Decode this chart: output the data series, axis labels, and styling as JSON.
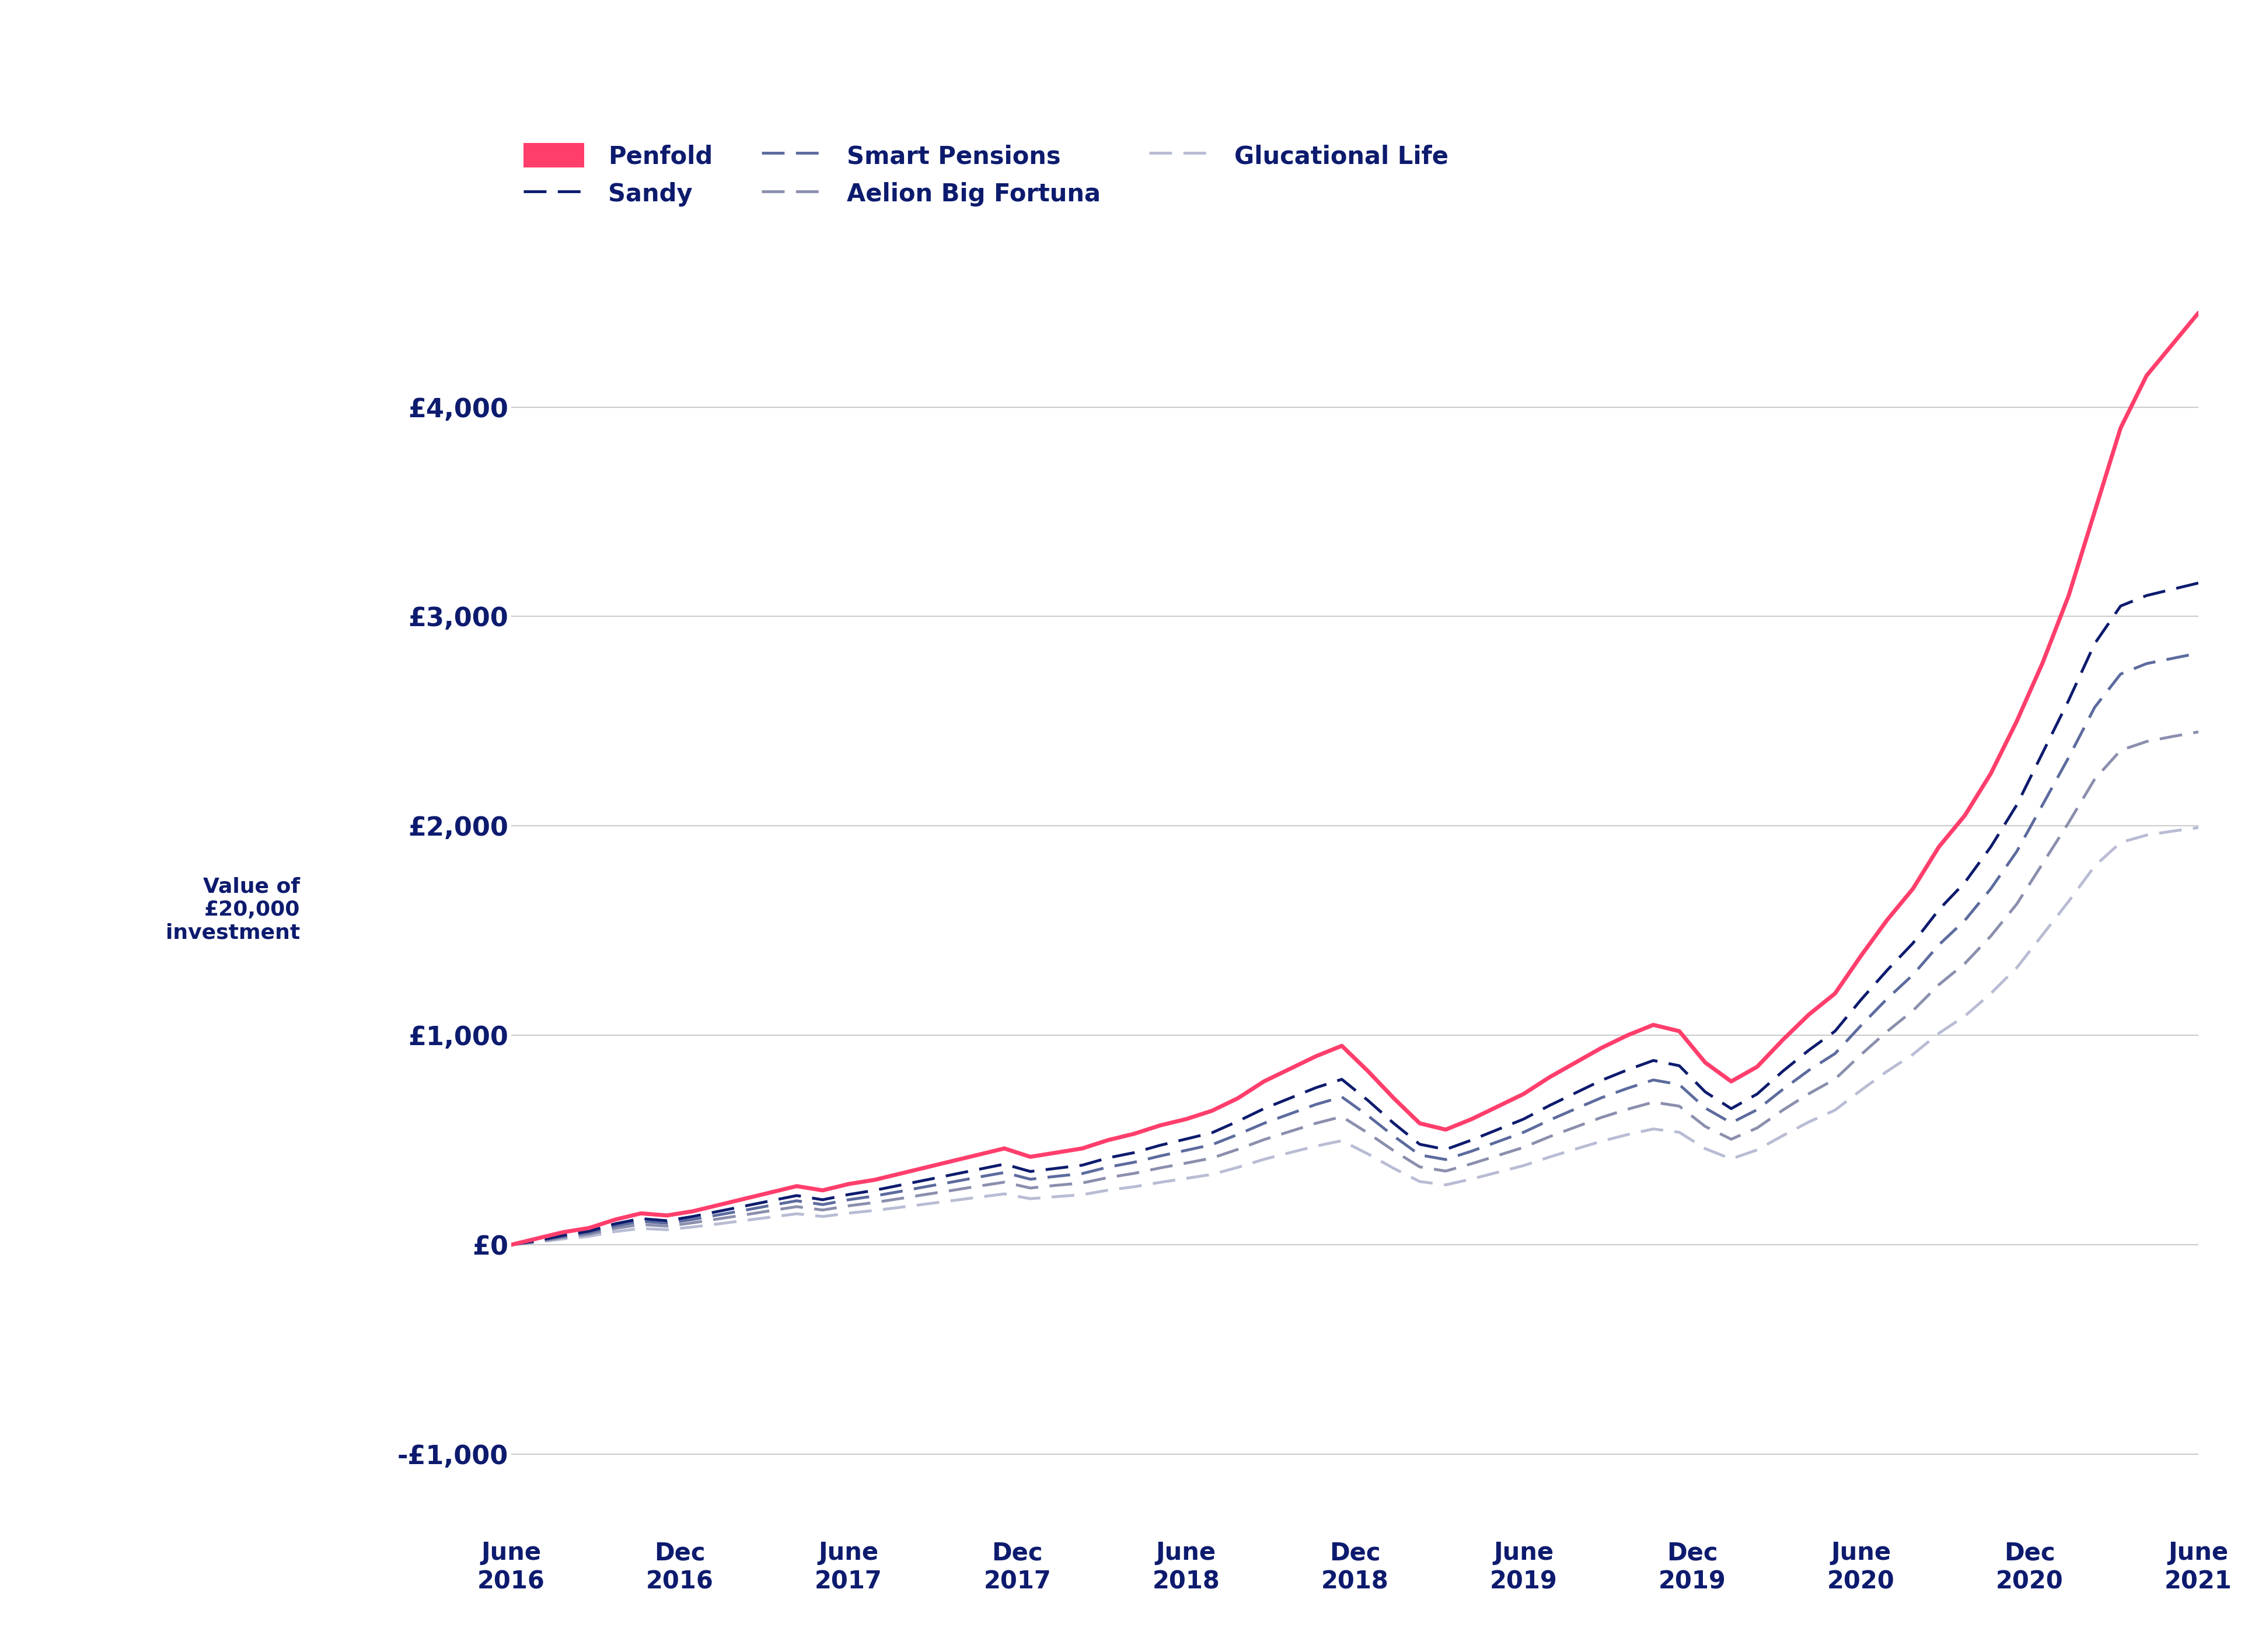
{
  "background_color": "#ffffff",
  "plot_bg_color": "#ffffff",
  "text_color": "#0d1b6e",
  "grid_color": "#cccccc",
  "y_ticks": [
    -1000,
    0,
    1000,
    2000,
    3000,
    4000
  ],
  "y_tick_labels": [
    "-£1,000",
    "£0",
    "£1,000",
    "£2,000",
    "£3,000",
    "£4,000"
  ],
  "x_tick_labels": [
    "June\n2016",
    "Dec\n2016",
    "June\n2017",
    "Dec\n2017",
    "June\n2018",
    "Dec\n2018",
    "June\n2019",
    "Dec\n2019",
    "June\n2020",
    "Dec\n2020",
    "June\n2021"
  ],
  "ylim": [
    -1400,
    4600
  ],
  "xlim": [
    0,
    60
  ],
  "series": {
    "Penfold": {
      "color": "#FF3E6C",
      "linewidth": 5.0,
      "zorder": 10,
      "dash": "solid",
      "values": [
        0,
        30,
        60,
        80,
        120,
        150,
        140,
        160,
        190,
        220,
        250,
        280,
        260,
        290,
        310,
        340,
        370,
        400,
        430,
        460,
        420,
        440,
        460,
        500,
        530,
        570,
        600,
        640,
        700,
        780,
        840,
        900,
        950,
        830,
        700,
        580,
        550,
        600,
        660,
        720,
        800,
        870,
        940,
        1000,
        1050,
        1020,
        870,
        780,
        850,
        980,
        1100,
        1200,
        1380,
        1550,
        1700,
        1900,
        2050,
        2250,
        2500,
        2780,
        3100,
        3500,
        3900,
        4150,
        4300,
        4450
      ]
    },
    "Sandy": {
      "color": "#0d1b6e",
      "linewidth": 3.5,
      "zorder": 7,
      "dash": [
        8,
        4
      ],
      "values": [
        0,
        20,
        45,
        65,
        100,
        125,
        115,
        135,
        160,
        185,
        210,
        235,
        215,
        240,
        260,
        285,
        310,
        335,
        360,
        385,
        350,
        365,
        380,
        415,
        440,
        475,
        505,
        535,
        590,
        650,
        700,
        750,
        790,
        690,
        580,
        480,
        455,
        500,
        550,
        600,
        665,
        725,
        785,
        835,
        880,
        855,
        730,
        650,
        720,
        830,
        930,
        1020,
        1170,
        1310,
        1440,
        1600,
        1730,
        1900,
        2100,
        2350,
        2600,
        2870,
        3050,
        3100,
        3130,
        3160
      ]
    },
    "Smart Pensions": {
      "color": "#5c6b9e",
      "linewidth": 3.5,
      "zorder": 6,
      "dash": [
        8,
        4
      ],
      "values": [
        0,
        18,
        40,
        58,
        90,
        112,
        103,
        121,
        143,
        165,
        188,
        210,
        192,
        215,
        233,
        255,
        278,
        300,
        323,
        345,
        313,
        327,
        340,
        371,
        394,
        424,
        451,
        478,
        527,
        580,
        625,
        670,
        706,
        617,
        519,
        429,
        407,
        447,
        492,
        537,
        595,
        649,
        702,
        747,
        787,
        765,
        653,
        582,
        645,
        743,
        834,
        913,
        1047,
        1174,
        1289,
        1432,
        1549,
        1700,
        1878,
        2102,
        2327,
        2566,
        2725,
        2775,
        2800,
        2825
      ]
    },
    "Aelion Big Fortuna": {
      "color": "#8b8fad",
      "linewidth": 3.5,
      "zorder": 5,
      "dash": [
        8,
        4
      ],
      "values": [
        0,
        15,
        35,
        50,
        78,
        97,
        89,
        105,
        124,
        143,
        163,
        182,
        166,
        186,
        202,
        221,
        241,
        260,
        280,
        299,
        271,
        284,
        295,
        321,
        341,
        367,
        390,
        414,
        456,
        502,
        541,
        580,
        612,
        534,
        449,
        372,
        352,
        387,
        426,
        465,
        516,
        562,
        608,
        647,
        681,
        662,
        565,
        504,
        558,
        644,
        722,
        791,
        908,
        1018,
        1118,
        1242,
        1343,
        1474,
        1627,
        1821,
        2016,
        2223,
        2361,
        2403,
        2427,
        2449
      ]
    },
    "Glucational Life": {
      "color": "#b8bcd4",
      "linewidth": 3.5,
      "zorder": 4,
      "dash": [
        8,
        4
      ],
      "values": [
        0,
        12,
        28,
        40,
        63,
        78,
        72,
        85,
        100,
        116,
        132,
        148,
        135,
        151,
        164,
        179,
        195,
        211,
        227,
        243,
        220,
        230,
        239,
        261,
        277,
        298,
        317,
        336,
        370,
        408,
        440,
        471,
        497,
        434,
        365,
        302,
        286,
        314,
        346,
        378,
        419,
        457,
        494,
        526,
        553,
        537,
        459,
        410,
        453,
        522,
        587,
        643,
        738,
        828,
        909,
        1010,
        1092,
        1200,
        1323,
        1481,
        1640,
        1808,
        1921,
        1956,
        1975,
        1992
      ]
    }
  }
}
